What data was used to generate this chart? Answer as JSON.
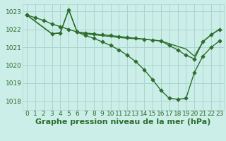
{
  "title": "Graphe pression niveau de la mer (hPa)",
  "bg_color": "#cceee8",
  "grid_color": "#aad4ce",
  "line_color": "#2d6e2d",
  "xlim": [
    -0.5,
    23.5
  ],
  "ylim": [
    1017.5,
    1023.4
  ],
  "yticks": [
    1018,
    1019,
    1020,
    1021,
    1022,
    1023
  ],
  "xticks": [
    0,
    1,
    2,
    3,
    4,
    5,
    6,
    7,
    8,
    9,
    10,
    11,
    12,
    13,
    14,
    15,
    16,
    17,
    18,
    19,
    20,
    21,
    22,
    23
  ],
  "line1_x": [
    0,
    1,
    2,
    3,
    4,
    5,
    6,
    7,
    8,
    9,
    10,
    11,
    12,
    13,
    14,
    15,
    16,
    17,
    18,
    19,
    20,
    21,
    22,
    23
  ],
  "line1_y": [
    1022.8,
    1022.65,
    1022.5,
    1022.3,
    1022.15,
    1022.0,
    1021.85,
    1021.65,
    1021.5,
    1021.3,
    1021.1,
    1020.85,
    1020.55,
    1020.2,
    1019.75,
    1019.2,
    1018.6,
    1018.15,
    1018.1,
    1018.15,
    1019.6,
    1020.5,
    1021.0,
    1021.35
  ],
  "line2_x": [
    0,
    3,
    4,
    5,
    6,
    7,
    8,
    9,
    10,
    11,
    12,
    13,
    14,
    15,
    16,
    17,
    18,
    19,
    20,
    21,
    22,
    23
  ],
  "line2_y": [
    1022.8,
    1021.75,
    1021.8,
    1023.1,
    1021.85,
    1021.8,
    1021.75,
    1021.7,
    1021.65,
    1021.6,
    1021.55,
    1021.5,
    1021.45,
    1021.4,
    1021.35,
    1021.1,
    1020.85,
    1020.55,
    1020.35,
    1021.3,
    1021.7,
    1022.0
  ],
  "line3_x": [
    0,
    3,
    4,
    5,
    6,
    7,
    8,
    9,
    10,
    11,
    12,
    13,
    14,
    15,
    16,
    17,
    18,
    19,
    20,
    21,
    22,
    23
  ],
  "line3_y": [
    1022.8,
    1021.75,
    1021.8,
    1023.1,
    1021.85,
    1021.75,
    1021.7,
    1021.65,
    1021.6,
    1021.55,
    1021.5,
    1021.48,
    1021.45,
    1021.4,
    1021.35,
    1021.2,
    1021.05,
    1020.9,
    1020.5,
    1021.3,
    1021.7,
    1022.0
  ],
  "title_fontsize": 8,
  "tick_fontsize": 6.5,
  "tick_color": "#2d6e2d"
}
